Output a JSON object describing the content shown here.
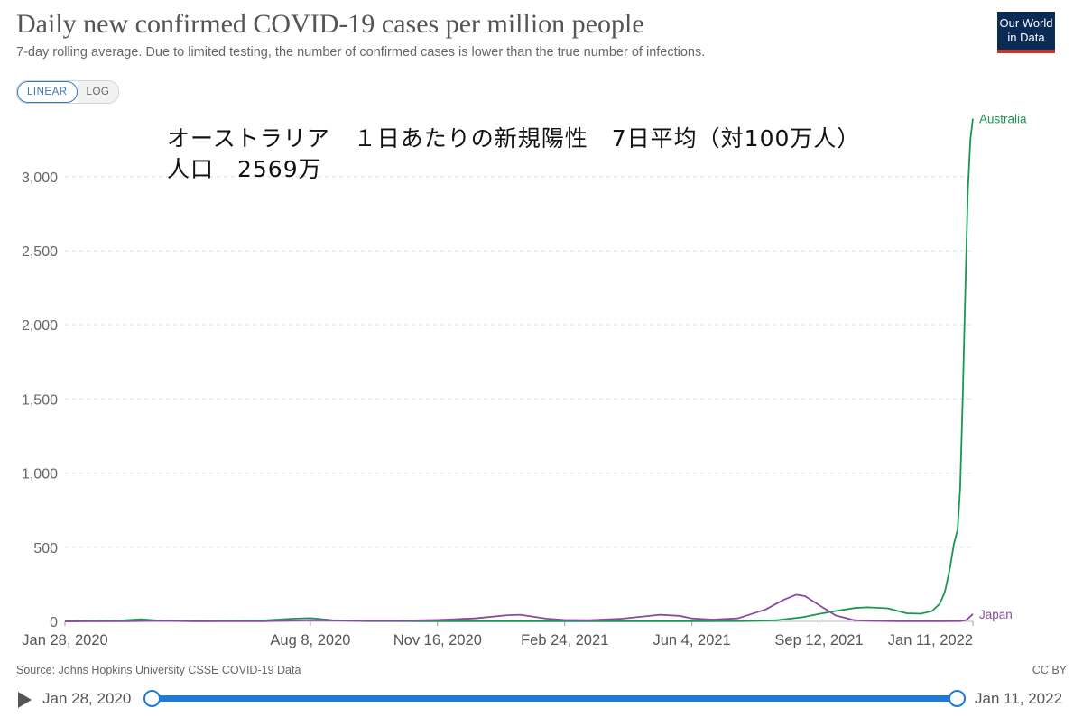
{
  "header": {
    "title": "Daily new confirmed COVID-19 cases per million people",
    "subtitle": "7-day rolling average. Due to limited testing, the number of confirmed cases is lower than the true number of infections.",
    "logo_line1": "Our World",
    "logo_line2": "in Data"
  },
  "scale_toggle": {
    "linear_label": "LINEAR",
    "log_label": "LOG",
    "selected": "LINEAR"
  },
  "annotation": {
    "line1": "オーストラリア　１日あたりの新規陽性　7日平均（対100万人）",
    "line2": "人口　2569万"
  },
  "footer": {
    "source": "Source: Johns Hopkins University CSSE COVID-19 Data",
    "license": "CC BY"
  },
  "timeline": {
    "start_label": "Jan 28, 2020",
    "end_label": "Jan 11, 2022"
  },
  "colors": {
    "australia": "#1a9850",
    "japan": "#8a4aa3",
    "grid": "#dddddd",
    "accent": "#1c7ad8"
  },
  "chart_data": {
    "type": "line",
    "title": "Daily new confirmed COVID-19 cases per million people",
    "xlabel": "",
    "ylabel": "",
    "x_domain": [
      "2020-01-28",
      "2022-01-11"
    ],
    "ylim": [
      0,
      3400
    ],
    "y_ticks": [
      0,
      500,
      1000,
      1500,
      2000,
      2500,
      3000
    ],
    "y_tick_labels": [
      "0",
      "500",
      "1,000",
      "1,500",
      "2,000",
      "2,500",
      "3,000"
    ],
    "x_ticks": [
      "2020-01-28",
      "2020-08-08",
      "2020-11-16",
      "2021-02-24",
      "2021-06-04",
      "2021-09-12",
      "2022-01-11"
    ],
    "x_tick_labels": [
      "Jan 28, 2020",
      "Aug 8, 2020",
      "Nov 16, 2020",
      "Feb 24, 2021",
      "Jun 4, 2021",
      "Sep 12, 2021",
      "Jan 11, 2022"
    ],
    "grid": "horizontal dashed",
    "series": [
      {
        "name": "Australia",
        "color": "#1a9850",
        "x": [
          "2020-01-28",
          "2020-03-10",
          "2020-03-28",
          "2020-04-15",
          "2020-05-15",
          "2020-07-01",
          "2020-07-25",
          "2020-08-08",
          "2020-08-25",
          "2020-09-20",
          "2020-11-16",
          "2021-01-01",
          "2021-03-01",
          "2021-06-04",
          "2021-07-15",
          "2021-08-10",
          "2021-08-30",
          "2021-09-12",
          "2021-09-25",
          "2021-10-10",
          "2021-10-20",
          "2021-11-05",
          "2021-11-20",
          "2021-12-01",
          "2021-12-10",
          "2021-12-16",
          "2021-12-20",
          "2021-12-24",
          "2021-12-27",
          "2021-12-30",
          "2022-01-01",
          "2022-01-03",
          "2022-01-05",
          "2022-01-07",
          "2022-01-09",
          "2022-01-11"
        ],
        "values": [
          0,
          5,
          14,
          3,
          1,
          6,
          18,
          22,
          8,
          2,
          1,
          1,
          1,
          1,
          2,
          8,
          28,
          50,
          70,
          90,
          95,
          88,
          55,
          52,
          70,
          120,
          200,
          360,
          520,
          620,
          900,
          1500,
          2200,
          2900,
          3250,
          3390
        ]
      },
      {
        "name": "Japan",
        "color": "#8a4aa3",
        "x": [
          "2020-01-28",
          "2020-03-15",
          "2020-04-12",
          "2020-05-10",
          "2020-07-01",
          "2020-08-08",
          "2020-09-10",
          "2020-10-15",
          "2020-11-16",
          "2020-12-15",
          "2021-01-10",
          "2021-01-20",
          "2021-02-10",
          "2021-02-24",
          "2021-03-15",
          "2021-04-10",
          "2021-05-10",
          "2021-05-25",
          "2021-06-04",
          "2021-06-20",
          "2021-07-10",
          "2021-08-01",
          "2021-08-15",
          "2021-08-25",
          "2021-09-01",
          "2021-09-12",
          "2021-09-25",
          "2021-10-10",
          "2021-10-25",
          "2021-11-15",
          "2021-12-15",
          "2022-01-01",
          "2022-01-06",
          "2022-01-11"
        ],
        "values": [
          0,
          1,
          4,
          1,
          1,
          8,
          4,
          4,
          10,
          20,
          42,
          45,
          18,
          10,
          8,
          18,
          45,
          38,
          20,
          12,
          20,
          80,
          145,
          180,
          170,
          110,
          40,
          8,
          3,
          1,
          1,
          2,
          10,
          50
        ]
      }
    ]
  }
}
